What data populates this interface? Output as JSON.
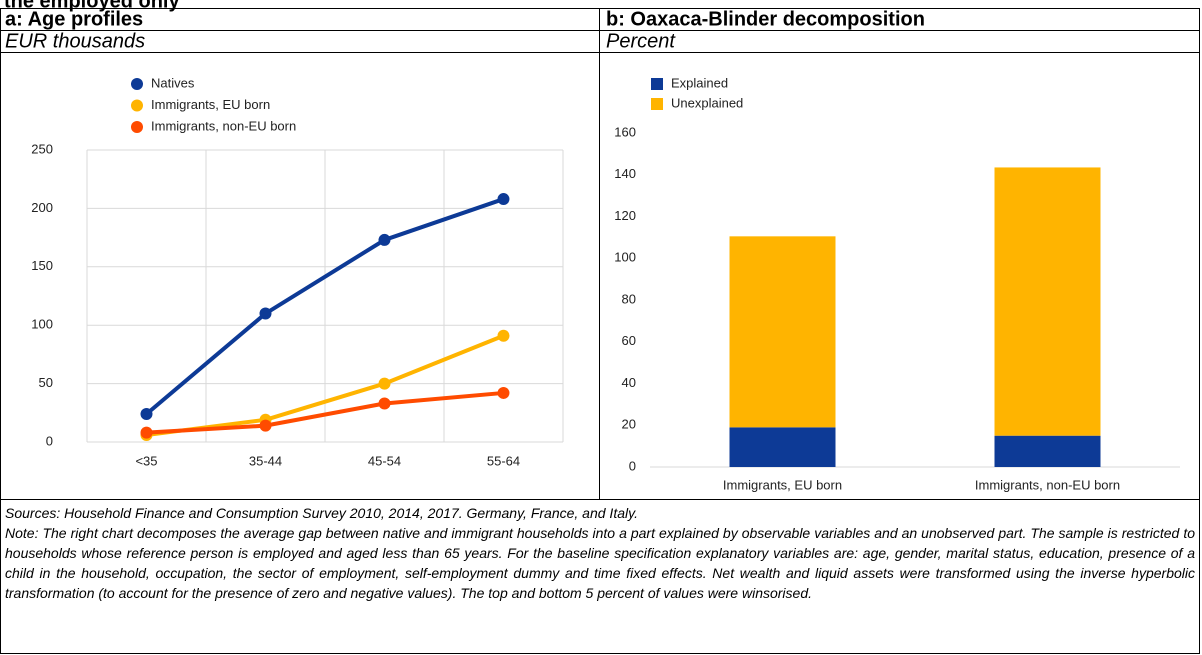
{
  "title": "the employed only",
  "chart_data": [
    {
      "type": "line",
      "title": "a: Age profiles",
      "subtitle": "EUR thousands",
      "categories": [
        "<35",
        "35-44",
        "45-54",
        "55-64"
      ],
      "series": [
        {
          "name": "Natives",
          "color": "#0d3a96",
          "values": [
            24,
            110,
            173,
            208
          ]
        },
        {
          "name": "Immigrants, EU born",
          "color": "#ffb400",
          "values": [
            6,
            19,
            50,
            91
          ]
        },
        {
          "name": "Immigrants, non-EU born",
          "color": "#ff4b00",
          "values": [
            8,
            14,
            33,
            42
          ]
        }
      ],
      "ylim": [
        0,
        250
      ],
      "yticks": [
        0,
        50,
        100,
        150,
        200,
        250
      ],
      "grid": true,
      "legend": "top-left"
    },
    {
      "type": "bar",
      "stacked": true,
      "title": "b: Oaxaca-Blinder decomposition",
      "subtitle": "Percent",
      "categories": [
        "Immigrants, EU born",
        "Immigrants, non-EU born"
      ],
      "series": [
        {
          "name": "Explained",
          "color": "#0d3a96",
          "values": [
            19,
            15
          ]
        },
        {
          "name": "Unexplained",
          "color": "#ffb400",
          "values": [
            91.5,
            128.5
          ]
        }
      ],
      "ylim": [
        0,
        160
      ],
      "yticks": [
        0,
        20,
        40,
        60,
        80,
        100,
        120,
        140,
        160
      ],
      "grid": false,
      "legend": "top-left"
    }
  ],
  "notes": {
    "sources": "Sources: Household Finance and Consumption Survey 2010, 2014, 2017. Germany, France, and Italy.",
    "note": "Note: The right chart decomposes the average gap between native and immigrant households into a part explained by observable variables and an unobserved part. The sample is restricted to households whose reference person is employed and aged less than 65 years. For the baseline specification explanatory variables are: age, gender, marital status, education, presence of a child in the household, occupation, the sector of employment, self-employment dummy and time fixed effects. Net wealth and liquid assets were transformed using the inverse hyperbolic transformation (to account for the presence of zero and negative values). The top and bottom 5 percent of values were winsorised."
  }
}
